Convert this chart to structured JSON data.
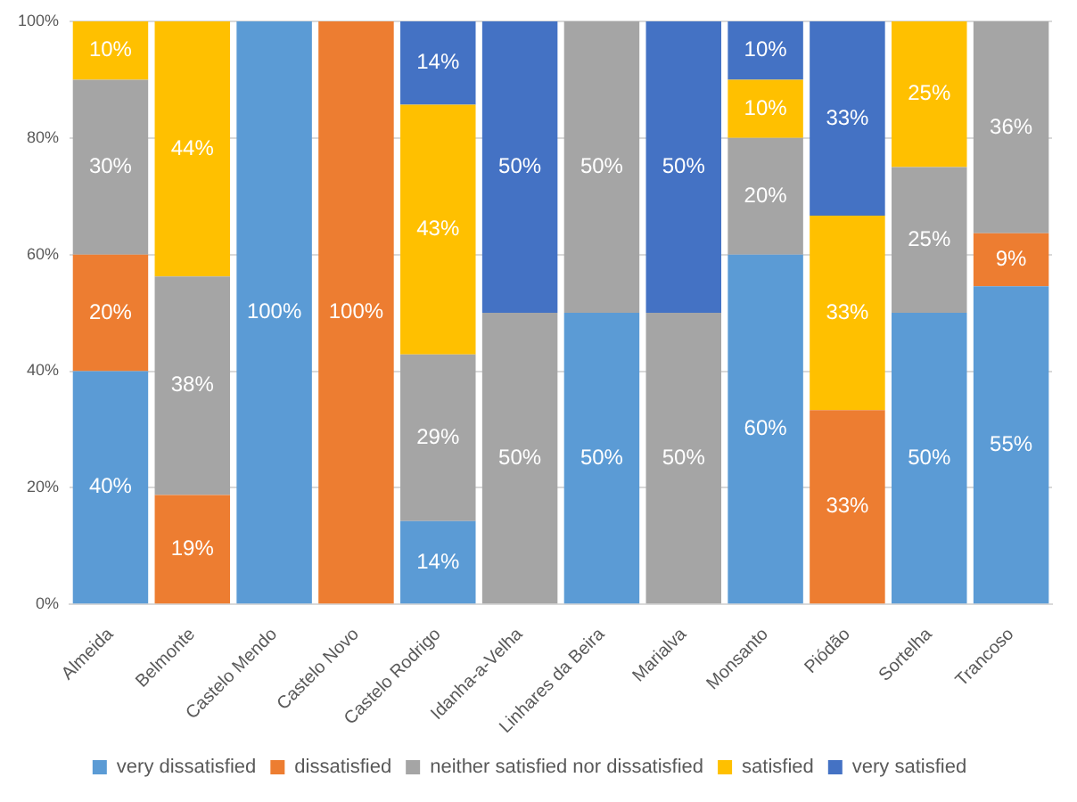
{
  "chart_data": {
    "type": "bar",
    "stacked": true,
    "categories": [
      "Almeida",
      "Belmonte",
      "Castelo Mendo",
      "Castelo Novo",
      "Castelo Rodrigo",
      "Idanha-a-Velha",
      "Linhares da Beira",
      "Marialva",
      "Monsanto",
      "Piódão",
      "Sortelha",
      "Trancoso"
    ],
    "series": [
      {
        "name": "very dissatisfied",
        "color": "#5b9bd5",
        "values": [
          40,
          null,
          100,
          null,
          14.28,
          null,
          50,
          null,
          60,
          null,
          50,
          54.55
        ],
        "value_labels": [
          "40%",
          null,
          "100%",
          null,
          "14%",
          null,
          "50%",
          null,
          "60%",
          null,
          "50%",
          "55%"
        ]
      },
      {
        "name": "dissatisfied",
        "color": "#ed7d31",
        "values": [
          20,
          18.75,
          null,
          100,
          null,
          null,
          null,
          null,
          null,
          33.33,
          null,
          9.09
        ],
        "value_labels": [
          "20%",
          "19%",
          null,
          "100%",
          null,
          null,
          null,
          null,
          null,
          "33%",
          null,
          "9%"
        ]
      },
      {
        "name": "neither satisfied nor dissatisfied",
        "color": "#a5a5a5",
        "values": [
          30,
          37.5,
          null,
          null,
          28.57,
          50,
          50,
          50,
          20,
          null,
          25,
          36.36
        ],
        "value_labels": [
          "30%",
          "38%",
          null,
          null,
          "29%",
          "50%",
          "50%",
          "50%",
          "20%",
          null,
          "25%",
          "36%"
        ]
      },
      {
        "name": "satisfied",
        "color": "#ffc000",
        "values": [
          10,
          43.75,
          null,
          null,
          42.86,
          null,
          null,
          null,
          10,
          33.33,
          25,
          null
        ],
        "value_labels": [
          "10%",
          "44%",
          null,
          null,
          "43%",
          null,
          null,
          null,
          "10%",
          "33%",
          "25%",
          null
        ]
      },
      {
        "name": "very satisfied",
        "color": "#4472c4",
        "values": [
          null,
          null,
          null,
          null,
          14.29,
          50,
          null,
          50,
          10,
          33.34,
          null,
          null
        ],
        "value_labels": [
          null,
          null,
          null,
          null,
          "14%",
          "50%",
          null,
          "50%",
          "10%",
          "33%",
          null,
          null
        ]
      }
    ],
    "ylim": [
      0,
      100
    ],
    "yticks": [
      {
        "value": 0,
        "label": "0%"
      },
      {
        "value": 20,
        "label": "20%"
      },
      {
        "value": 40,
        "label": "40%"
      },
      {
        "value": 60,
        "label": "60%"
      },
      {
        "value": 80,
        "label": "80%"
      },
      {
        "value": 100,
        "label": "100%"
      }
    ],
    "grid": "y",
    "legend": "bottom"
  }
}
